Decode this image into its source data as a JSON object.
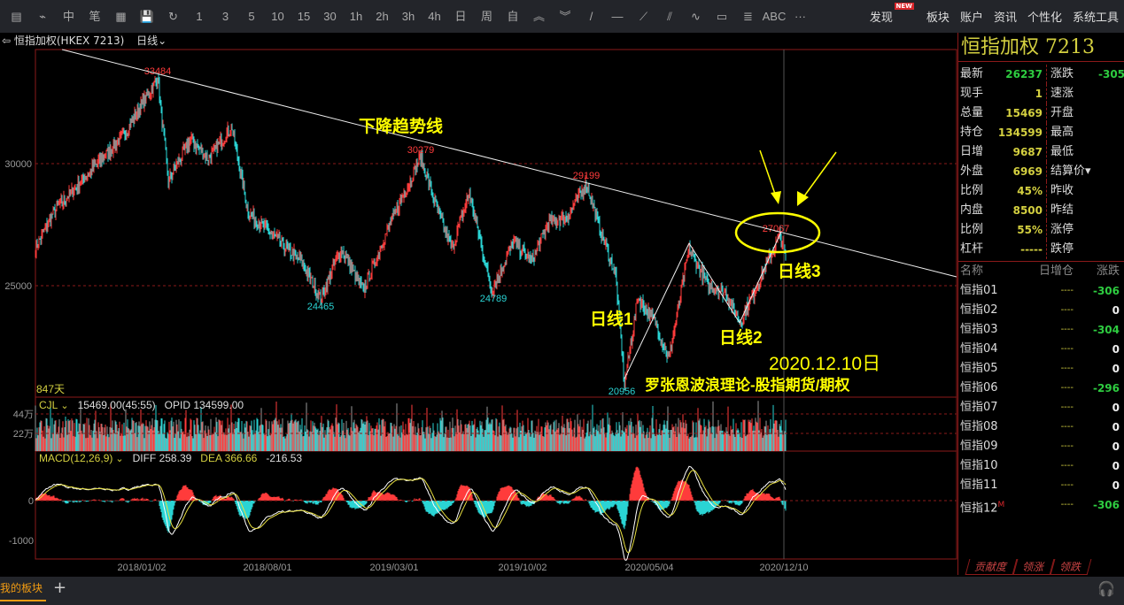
{
  "toolbar": {
    "items": [
      "▤",
      "⌁",
      "中",
      "笔",
      "▦",
      "💾",
      "↻",
      "1",
      "3",
      "5",
      "10",
      "15",
      "30",
      "1h",
      "2h",
      "3h",
      "4h",
      "日",
      "周",
      "自",
      "︽",
      "︾",
      "/",
      "—",
      "⟋",
      "⫽",
      "∿",
      "▭",
      "≣",
      "ABC",
      "···"
    ],
    "icons": [
      "table-icon",
      "line-icon",
      "kline-icon",
      "draw-icon",
      "grid-icon",
      "save-icon",
      "refresh-icon"
    ],
    "menu": [
      "发现",
      "板块",
      "账户",
      "资讯",
      "个性化",
      "系统工具"
    ],
    "new_badge": "NEW"
  },
  "chart_header": {
    "title": "恒指加权(HKEX 7213)",
    "period": "日线"
  },
  "main": {
    "y_ticks": [
      "30000",
      "25000"
    ],
    "days": "847天",
    "labels": {
      "h1": "33484",
      "h2": "30279",
      "h3": "29199",
      "l1": "24465",
      "l2": "24789",
      "l3": "20956",
      "cur": "27067"
    },
    "annotations": {
      "trend": "下降趋势线",
      "w1": "日线1",
      "w2": "日线2",
      "w3": "日线3",
      "date": "2020.12.10日",
      "footer": "罗张恩波浪理论-股指期货/期权"
    },
    "anchors": [
      [
        0,
        26500
      ],
      [
        20,
        28000
      ],
      [
        40,
        28800
      ],
      [
        70,
        30000
      ],
      [
        100,
        31200
      ],
      [
        138,
        33484
      ],
      [
        150,
        29300
      ],
      [
        175,
        31000
      ],
      [
        195,
        30200
      ],
      [
        222,
        31500
      ],
      [
        240,
        28000
      ],
      [
        270,
        27000
      ],
      [
        300,
        26000
      ],
      [
        322,
        24465
      ],
      [
        345,
        26500
      ],
      [
        370,
        24800
      ],
      [
        400,
        27500
      ],
      [
        435,
        30279
      ],
      [
        455,
        28000
      ],
      [
        470,
        26500
      ],
      [
        490,
        28800
      ],
      [
        515,
        24789
      ],
      [
        540,
        26800
      ],
      [
        560,
        26000
      ],
      [
        580,
        27600
      ],
      [
        600,
        27800
      ],
      [
        622,
        29199
      ],
      [
        640,
        27000
      ],
      [
        655,
        25500
      ],
      [
        665,
        20956
      ],
      [
        680,
        24500
      ],
      [
        700,
        23500
      ],
      [
        715,
        22000
      ],
      [
        738,
        26500
      ],
      [
        760,
        25000
      ],
      [
        780,
        24700
      ],
      [
        795,
        23500
      ],
      [
        815,
        25000
      ],
      [
        840,
        27067
      ],
      [
        847,
        26237
      ]
    ],
    "date_ticks": [
      "2018/01/02",
      "2018/08/01",
      "2019/03/01",
      "2019/10/02",
      "2020/05/04",
      "2020/12/10"
    ]
  },
  "volume": {
    "indicator": "CJL",
    "value": "15469.00(45:55)",
    "opid": "OPID 134599.00",
    "ticks": [
      "44万",
      "22万"
    ]
  },
  "macd": {
    "indicator": "MACD(12,26,9)",
    "diff": "DIFF 258.39",
    "dea": "DEA 366.66",
    "macd": "-216.53",
    "ticks": [
      "0",
      "-1000"
    ]
  },
  "quote": {
    "title": "恒指加权  7213",
    "rows": [
      [
        "最新",
        "26237",
        "涨跌",
        "-305"
      ],
      [
        "现手",
        "1",
        "速涨",
        ""
      ],
      [
        "总量",
        "15469",
        "开盘",
        ""
      ],
      [
        "持仓",
        "134599",
        "最高",
        ""
      ],
      [
        "日增",
        "9687",
        "最低",
        ""
      ],
      [
        "外盘",
        "6969",
        "结算价▾",
        ""
      ],
      [
        "比例",
        "45%",
        "昨收",
        ""
      ],
      [
        "内盘",
        "8500",
        "昨结",
        ""
      ],
      [
        "比例",
        "55%",
        "涨停",
        ""
      ],
      [
        "杠杆",
        "-----",
        "跌停",
        ""
      ]
    ],
    "colors": [
      "#2ecc40",
      "#d4d040",
      "#d4d040",
      "#d4d040",
      "#d4d040",
      "#d4d040",
      "#d4d040",
      "#d4d040",
      "#d4d040",
      "#d4d040"
    ]
  },
  "list": {
    "headers": [
      "名称",
      "日增仓",
      "涨跌"
    ],
    "rows": [
      [
        "恒指01",
        "----",
        "-306"
      ],
      [
        "恒指02",
        "----",
        "0"
      ],
      [
        "恒指03",
        "----",
        "-304"
      ],
      [
        "恒指04",
        "----",
        "0"
      ],
      [
        "恒指05",
        "----",
        "0"
      ],
      [
        "恒指06",
        "----",
        "-296"
      ],
      [
        "恒指07",
        "----",
        "0"
      ],
      [
        "恒指08",
        "----",
        "0"
      ],
      [
        "恒指09",
        "----",
        "0"
      ],
      [
        "恒指10",
        "----",
        "0"
      ],
      [
        "恒指11",
        "----",
        "0"
      ],
      [
        "恒指12",
        "----",
        "-306"
      ]
    ],
    "badge": "M",
    "tabs": [
      "贡献度",
      "领涨",
      "领跌"
    ]
  },
  "bottom": {
    "panel": "我的板块",
    "plus": "+"
  },
  "colors": {
    "up": "#ff3b3b",
    "down": "#2ad4d4",
    "annot": "#ffff00",
    "grid": "#8b1a1a"
  }
}
